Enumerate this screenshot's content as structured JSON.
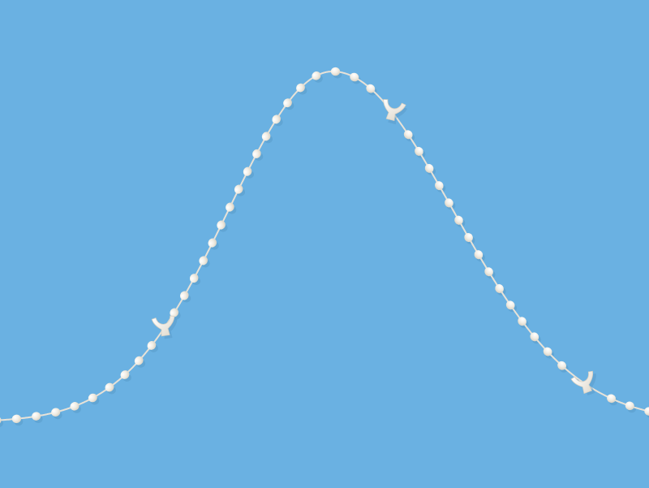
{
  "scene": {
    "subject": "bead-chain-with-clips",
    "background_color": "#6AB1E2",
    "bead_color": "#F1EDE4",
    "bead_shade_color": "#D9D2C4",
    "string_color": "#E7E2D8",
    "shadow_color": "#4F8FBD"
  }
}
